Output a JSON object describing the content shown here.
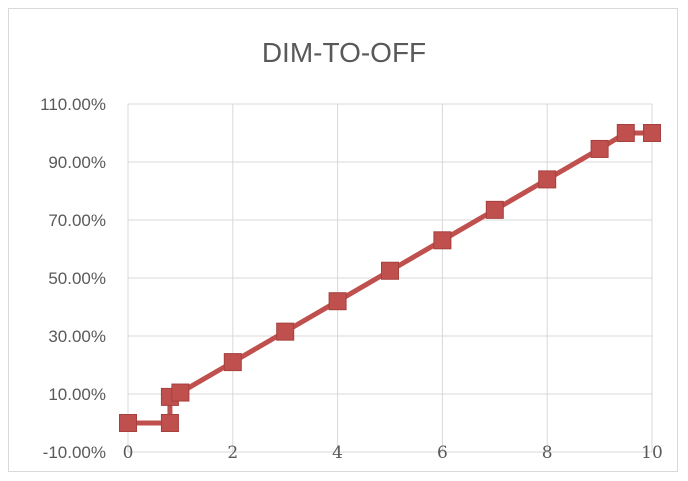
{
  "chart_data": {
    "type": "scatter",
    "title": "DIM-TO-OFF",
    "xlabel": "",
    "ylabel": "",
    "xlim": [
      0,
      10
    ],
    "ylim": [
      -10,
      110
    ],
    "x_ticks": [
      "0",
      "2",
      "4",
      "6",
      "8",
      "10"
    ],
    "y_ticks": [
      "110.00%",
      "90.00%",
      "70.00%",
      "50.00%",
      "30.00%",
      "10.00%",
      "-10.00%"
    ],
    "y_tick_values": [
      110,
      90,
      70,
      50,
      30,
      10,
      -10
    ],
    "grid": true,
    "legend": "none",
    "series": [
      {
        "color": "#c0504d",
        "marker": "square",
        "hidden_series_color": "#4472c4",
        "x": [
          0,
          0.8,
          0.8,
          1,
          2,
          3,
          4,
          5,
          6,
          7,
          8,
          9,
          9.5,
          10
        ],
        "y": [
          0,
          0,
          9,
          10.5,
          21,
          31.5,
          42,
          52.5,
          63,
          73.5,
          84,
          94.5,
          100,
          100
        ]
      }
    ]
  }
}
